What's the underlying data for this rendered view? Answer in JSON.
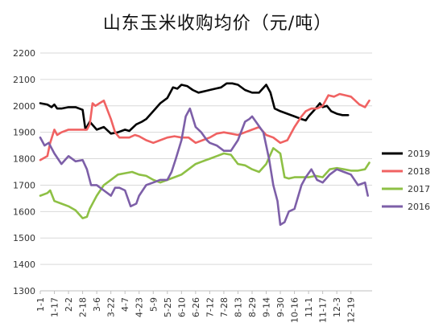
{
  "chart_data": {
    "type": "line",
    "title": "山东玉米收购均价（元/吨）",
    "xlabel": "",
    "ylabel": "",
    "ylim": [
      1300,
      2200
    ],
    "y_ticks": [
      1300,
      1400,
      1500,
      1600,
      1700,
      1800,
      1900,
      2000,
      2100,
      2200
    ],
    "x_tick_labels": [
      "1-1",
      "1-17",
      "2-2",
      "2-18",
      "3-6",
      "3-22",
      "4-7",
      "4-23",
      "5-9",
      "5-25",
      "6-10",
      "6-26",
      "7-12",
      "7-28",
      "8-13",
      "8-29",
      "9-14",
      "9-30",
      "10-16",
      "11-1",
      "11-17",
      "12-3",
      "12-19"
    ],
    "x_range": [
      0,
      23.5
    ],
    "grid": true,
    "legend_position": "right",
    "series": [
      {
        "name": "2019",
        "color": "#000000",
        "x": [
          0,
          0.5,
          0.8,
          1,
          1.2,
          1.5,
          2,
          2.5,
          3,
          3.2,
          3.5,
          4,
          4.5,
          5,
          5.5,
          6,
          6.3,
          6.8,
          7.2,
          7.5,
          8,
          8.5,
          9,
          9.4,
          9.7,
          10,
          10.4,
          10.8,
          11.2,
          11.6,
          12,
          12.4,
          12.8,
          13.2,
          13.6,
          14,
          14.5,
          15,
          15.5,
          16,
          16.3,
          16.6,
          17,
          17.5,
          18,
          18.5,
          18.8,
          19,
          19.5,
          19.8,
          20,
          20.3,
          20.6,
          21,
          21.4,
          21.8
        ],
        "values": [
          2010,
          2005,
          1995,
          2005,
          1990,
          1990,
          1995,
          1995,
          1985,
          1910,
          1940,
          1910,
          1920,
          1895,
          1900,
          1910,
          1905,
          1930,
          1940,
          1950,
          1980,
          2010,
          2030,
          2070,
          2065,
          2080,
          2075,
          2060,
          2050,
          2055,
          2060,
          2065,
          2070,
          2085,
          2085,
          2080,
          2060,
          2050,
          2050,
          2080,
          2050,
          1990,
          1980,
          1970,
          1960,
          1950,
          1945,
          1960,
          1990,
          2010,
          1995,
          2000,
          1980,
          1970,
          1965,
          1965
        ]
      },
      {
        "name": "2018",
        "color": "#f06262",
        "x": [
          0,
          0.5,
          0.7,
          1,
          1.2,
          1.5,
          2,
          2.5,
          3,
          3.3,
          3.5,
          3.7,
          3.9,
          4.2,
          4.5,
          5,
          5.3,
          5.6,
          6,
          6.3,
          6.7,
          7,
          7.5,
          8,
          8.5,
          9,
          9.5,
          10,
          10.5,
          11,
          11.5,
          12,
          12.5,
          13,
          13.5,
          14,
          14.5,
          15,
          15.5,
          16,
          16.5,
          17,
          17.5,
          18,
          18.5,
          18.8,
          19.2,
          19.6,
          20,
          20.4,
          20.8,
          21.2,
          21.6,
          22,
          22.3,
          22.6,
          23,
          23.3
        ],
        "values": [
          1795,
          1810,
          1860,
          1910,
          1890,
          1900,
          1910,
          1910,
          1910,
          1910,
          1930,
          2010,
          2000,
          2010,
          2020,
          1950,
          1900,
          1880,
          1880,
          1880,
          1890,
          1885,
          1870,
          1860,
          1870,
          1880,
          1885,
          1880,
          1880,
          1860,
          1870,
          1880,
          1895,
          1900,
          1895,
          1890,
          1900,
          1910,
          1920,
          1890,
          1880,
          1860,
          1870,
          1920,
          1960,
          1980,
          1990,
          1990,
          2000,
          2040,
          2035,
          2045,
          2040,
          2035,
          2020,
          2005,
          1995,
          2020
        ]
      },
      {
        "name": "2017",
        "color": "#8ec045",
        "x": [
          0,
          0.5,
          0.7,
          1,
          1.5,
          2,
          2.5,
          3,
          3.3,
          3.5,
          3.8,
          4,
          4.5,
          5,
          5.5,
          6,
          6.5,
          7,
          7.5,
          8,
          8.5,
          9,
          9.5,
          10,
          10.5,
          11,
          11.5,
          12,
          12.5,
          13,
          13.5,
          14,
          14.5,
          15,
          15.5,
          16,
          16.5,
          17,
          17.3,
          17.6,
          18,
          18.5,
          19,
          19.5,
          20,
          20.5,
          21,
          21.5,
          22,
          22.5,
          23,
          23.3
        ],
        "values": [
          1660,
          1670,
          1680,
          1640,
          1630,
          1620,
          1605,
          1575,
          1580,
          1610,
          1640,
          1660,
          1700,
          1720,
          1740,
          1745,
          1750,
          1740,
          1735,
          1720,
          1710,
          1720,
          1730,
          1740,
          1760,
          1780,
          1790,
          1800,
          1810,
          1820,
          1815,
          1780,
          1775,
          1760,
          1750,
          1780,
          1840,
          1820,
          1730,
          1725,
          1730,
          1730,
          1730,
          1735,
          1730,
          1760,
          1765,
          1760,
          1755,
          1755,
          1760,
          1785
        ]
      },
      {
        "name": "2016",
        "color": "#7d5fa8",
        "x": [
          0,
          0.3,
          0.6,
          1,
          1.5,
          2,
          2.5,
          3,
          3.3,
          3.6,
          4,
          4.5,
          5,
          5.3,
          5.6,
          6,
          6.4,
          6.8,
          7,
          7.5,
          8,
          8.5,
          9,
          9.3,
          9.6,
          10,
          10.3,
          10.6,
          11,
          11.4,
          11.8,
          12,
          12.5,
          13,
          13.5,
          14,
          14.5,
          14.8,
          15,
          15.4,
          15.8,
          16.2,
          16.5,
          16.8,
          17,
          17.3,
          17.6,
          18,
          18.5,
          18.8,
          19.2,
          19.6,
          20,
          20.5,
          21,
          21.5,
          22,
          22.5,
          23,
          23.2
        ],
        "values": [
          1880,
          1850,
          1860,
          1820,
          1780,
          1810,
          1790,
          1795,
          1760,
          1700,
          1700,
          1680,
          1660,
          1690,
          1690,
          1680,
          1620,
          1630,
          1660,
          1700,
          1710,
          1720,
          1720,
          1750,
          1800,
          1870,
          1960,
          1990,
          1920,
          1900,
          1870,
          1860,
          1850,
          1830,
          1830,
          1870,
          1940,
          1950,
          1960,
          1930,
          1900,
          1800,
          1700,
          1640,
          1550,
          1560,
          1600,
          1610,
          1700,
          1730,
          1760,
          1720,
          1710,
          1740,
          1760,
          1750,
          1740,
          1700,
          1710,
          1660
        ]
      }
    ]
  }
}
